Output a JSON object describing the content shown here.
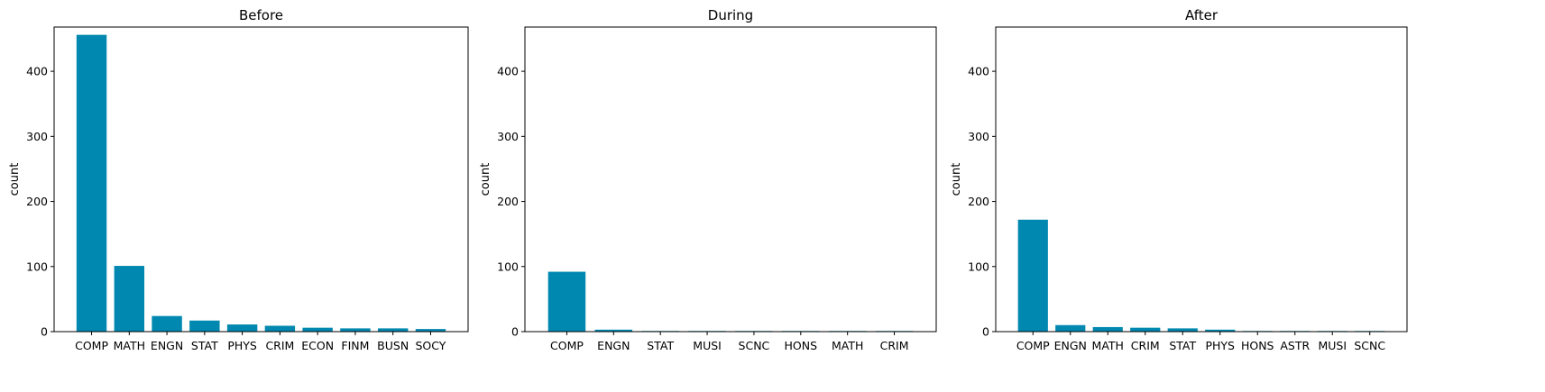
{
  "chart_data": [
    {
      "type": "bar",
      "title": "Before",
      "ylabel": "count",
      "xlabel": "",
      "ylim": [
        0,
        468
      ],
      "yticks": [
        0,
        100,
        200,
        300,
        400
      ],
      "bar_color": "#0088b0",
      "categories": [
        "COMP",
        "MATH",
        "ENGN",
        "STAT",
        "PHYS",
        "CRIM",
        "ECON",
        "FINM",
        "BUSN",
        "SOCY"
      ],
      "values": [
        456,
        101,
        24,
        17,
        11,
        9,
        6,
        5,
        5,
        4
      ]
    },
    {
      "type": "bar",
      "title": "During",
      "ylabel": "count",
      "xlabel": "",
      "ylim": [
        0,
        468
      ],
      "yticks": [
        0,
        100,
        200,
        300,
        400
      ],
      "bar_color": "#0088b0",
      "categories": [
        "COMP",
        "ENGN",
        "STAT",
        "MUSI",
        "SCNC",
        "HONS",
        "MATH",
        "CRIM"
      ],
      "values": [
        92,
        3,
        1,
        1,
        1,
        1,
        1,
        1
      ]
    },
    {
      "type": "bar",
      "title": "After",
      "ylabel": "count",
      "xlabel": "",
      "ylim": [
        0,
        468
      ],
      "yticks": [
        0,
        100,
        200,
        300,
        400
      ],
      "bar_color": "#0088b0",
      "categories": [
        "COMP",
        "ENGN",
        "MATH",
        "CRIM",
        "STAT",
        "PHYS",
        "HONS",
        "ASTR",
        "MUSI",
        "SCNC"
      ],
      "values": [
        172,
        10,
        7,
        6,
        5,
        3,
        1,
        1,
        1,
        1
      ]
    }
  ]
}
